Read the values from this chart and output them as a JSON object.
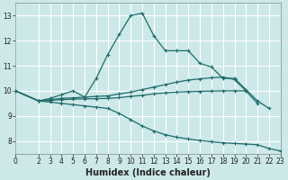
{
  "xlabel": "Humidex (Indice chaleur)",
  "xlim": [
    0,
    23
  ],
  "ylim": [
    7.5,
    13.5
  ],
  "yticks": [
    8,
    9,
    10,
    11,
    12,
    13
  ],
  "xticks": [
    0,
    2,
    3,
    4,
    5,
    6,
    7,
    8,
    9,
    10,
    11,
    12,
    13,
    14,
    15,
    16,
    17,
    18,
    19,
    20,
    21,
    22,
    23
  ],
  "bg_color": "#cce8e8",
  "grid_color": "#ffffff",
  "line_color": "#1f6b6b",
  "line1_x": [
    0,
    2,
    3,
    4,
    5,
    6,
    7,
    8,
    9,
    10,
    11,
    12,
    13,
    14,
    15,
    16,
    17,
    18,
    19,
    20,
    21,
    22
  ],
  "line1_y": [
    10.0,
    9.6,
    9.7,
    9.85,
    10.0,
    9.75,
    10.5,
    11.45,
    12.25,
    13.0,
    13.1,
    12.2,
    11.6,
    11.6,
    11.6,
    11.1,
    10.95,
    10.5,
    10.5,
    10.05,
    9.6,
    9.3
  ],
  "line2_x": [
    0,
    2,
    3,
    4,
    5,
    6,
    7,
    8,
    9,
    10,
    11,
    12,
    13,
    14,
    15,
    16,
    17,
    18,
    19,
    20,
    21
  ],
  "line2_y": [
    10.0,
    9.6,
    9.65,
    9.7,
    9.72,
    9.75,
    9.78,
    9.8,
    9.88,
    9.95,
    10.05,
    10.15,
    10.25,
    10.35,
    10.43,
    10.48,
    10.52,
    10.55,
    10.45,
    10.0,
    9.5
  ],
  "line3_x": [
    0,
    2,
    3,
    4,
    5,
    6,
    7,
    8,
    9,
    10,
    11,
    12,
    13,
    14,
    15,
    16,
    17,
    18,
    19,
    20
  ],
  "line3_y": [
    10.0,
    9.6,
    9.62,
    9.65,
    9.67,
    9.68,
    9.69,
    9.7,
    9.73,
    9.78,
    9.82,
    9.88,
    9.92,
    9.95,
    9.97,
    9.98,
    9.99,
    10.0,
    10.0,
    10.0
  ],
  "line4_x": [
    0,
    2,
    3,
    4,
    5,
    6,
    7,
    8,
    9,
    10,
    11,
    12,
    13,
    14,
    15,
    16,
    17,
    18,
    19,
    20,
    21,
    22,
    23
  ],
  "line4_y": [
    10.0,
    9.6,
    9.55,
    9.5,
    9.45,
    9.4,
    9.35,
    9.3,
    9.1,
    8.85,
    8.6,
    8.4,
    8.25,
    8.15,
    8.08,
    8.02,
    7.97,
    7.93,
    7.9,
    7.88,
    7.85,
    7.7,
    7.6
  ]
}
